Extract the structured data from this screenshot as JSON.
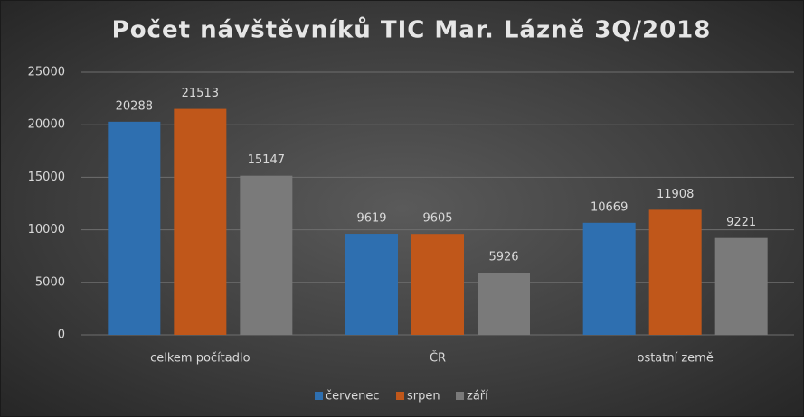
{
  "chart_data": {
    "type": "bar",
    "title": "Počet návštěvníků TIC Mar. Lázně 3Q/2018",
    "categories": [
      "celkem počítadlo",
      "ČR",
      "ostatní země"
    ],
    "series": [
      {
        "name": "červenec",
        "color": "#2e6fb0",
        "values": [
          20288,
          9619,
          10669
        ]
      },
      {
        "name": "srpen",
        "color": "#c0571a",
        "values": [
          21513,
          9605,
          11908
        ]
      },
      {
        "name": "září",
        "color": "#7a7a7a",
        "values": [
          15147,
          5926,
          9221
        ]
      }
    ],
    "ylim": [
      0,
      25000
    ],
    "yticks": [
      0,
      5000,
      10000,
      15000,
      20000,
      25000
    ],
    "grid": true,
    "legend": "bottom"
  }
}
